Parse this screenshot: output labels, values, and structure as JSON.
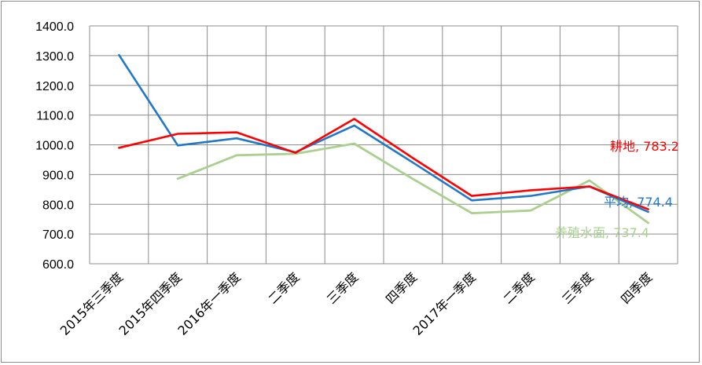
{
  "chart_data": {
    "type": "line",
    "categories": [
      "2015年三季度",
      "2015年四季度",
      "2016年一季度",
      "二季度",
      "三季度",
      "四季度",
      "2017年一季度",
      "二季度",
      "三季度",
      "四季度"
    ],
    "y_ticks": [
      "600.0",
      "700.0",
      "800.0",
      "900.0",
      "1000.0",
      "1100.0",
      "1200.0",
      "1300.0",
      "1400.0"
    ],
    "ylim": [
      600,
      1400
    ],
    "grid": true,
    "legend": "end-of-line labels",
    "series": [
      {
        "name": "平均",
        "color": "#1f78c8",
        "values": [
          1302,
          998,
          1022,
          975,
          1065,
          940,
          813,
          828,
          860,
          774.4
        ],
        "end_label": "平均, 774.4"
      },
      {
        "name": "耕地",
        "color": "#ff0000",
        "values": [
          990,
          1037,
          1042,
          973,
          1087,
          955,
          828,
          847,
          860,
          783.2
        ],
        "end_label": "耕地, 783.2"
      },
      {
        "name": "养殖水面",
        "color": "#a9d08e",
        "values": [
          null,
          886,
          965,
          970,
          1004,
          885,
          770,
          779,
          880,
          737.4
        ],
        "end_label": "养殖水面, 737.4"
      }
    ]
  }
}
